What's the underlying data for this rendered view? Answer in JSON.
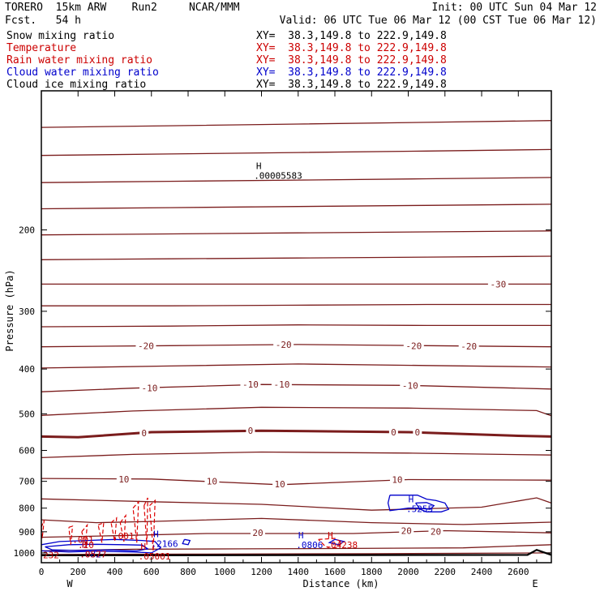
{
  "header": {
    "model": "TORERO  15km ARW    Run2     NCAR/MMM",
    "init": "Init: 00 UTC Sun 04 Mar 12",
    "fcst": "Fcst.   54 h",
    "valid": "Valid: 06 UTC Tue 06 Mar 12 (00 CST Tue 06 Mar 12)"
  },
  "fields": [
    {
      "name": "Snow mixing ratio",
      "xy": "XY=  38.3,149.8 to 222.9,149.8",
      "color": "#000000"
    },
    {
      "name": "Temperature",
      "xy": "XY=  38.3,149.8 to 222.9,149.8",
      "color": "#cc0000"
    },
    {
      "name": "Rain water mixing ratio",
      "xy": "XY=  38.3,149.8 to 222.9,149.8",
      "color": "#cc0000"
    },
    {
      "name": "Cloud water mixing ratio",
      "xy": "XY=  38.3,149.8 to 222.9,149.8",
      "color": "#0000cc"
    },
    {
      "name": "Cloud ice mixing ratio",
      "xy": "XY=  38.3,149.8 to 222.9,149.8",
      "color": "#000000"
    }
  ],
  "chart_data": {
    "type": "line",
    "xlabel": "Distance (km)",
    "ylabel": "Pressure (hPa)",
    "xlim": [
      0,
      2780
    ],
    "ylim": [
      1050,
      100
    ],
    "y_log": true,
    "xticks": [
      0,
      200,
      400,
      600,
      800,
      1000,
      1200,
      1400,
      1600,
      1800,
      2000,
      2200,
      2400,
      2600
    ],
    "yticks": [
      200,
      300,
      400,
      500,
      600,
      700,
      800,
      900,
      1000
    ],
    "west_label": "W",
    "east_label": "E",
    "isotherm_color": "#7a1c1c",
    "cloud_color": "#0000cc",
    "rain_color": "#dd0000",
    "isotherms": [
      {
        "x": [
          0,
          700,
          1400,
          2100,
          2780
        ],
        "p": [
          120,
          119,
          118,
          117,
          116
        ]
      },
      {
        "x": [
          0,
          700,
          1400,
          2100,
          2780
        ],
        "p": [
          138,
          137,
          136,
          135,
          134
        ]
      },
      {
        "x": [
          0,
          700,
          1400,
          2100,
          2780
        ],
        "p": [
          158,
          157,
          156,
          155,
          154
        ]
      },
      {
        "x": [
          0,
          700,
          1400,
          2100,
          2780
        ],
        "p": [
          180,
          179,
          178,
          177,
          176
        ]
      },
      {
        "x": [
          0,
          700,
          1400,
          2100,
          2780
        ],
        "p": [
          205,
          204,
          203,
          202,
          201
        ]
      },
      {
        "x": [
          0,
          700,
          1400,
          2100,
          2780
        ],
        "p": [
          232,
          231,
          230,
          229,
          228
        ]
      },
      {
        "x": [
          0,
          700,
          1400,
          2100,
          2780
        ],
        "p": [
          262,
          262,
          262,
          262,
          262
        ]
      },
      {
        "x": [
          0,
          700,
          1400,
          2100,
          2780
        ],
        "p": [
          292,
          292,
          291,
          290,
          290
        ]
      },
      {
        "x": [
          0,
          700,
          1400,
          2100,
          2780
        ],
        "p": [
          324,
          323,
          321,
          322,
          322
        ]
      },
      {
        "x": [
          0,
          700,
          1400,
          2100,
          2780
        ],
        "p": [
          358,
          356,
          354,
          356,
          358
        ]
      },
      {
        "x": [
          0,
          700,
          1400,
          2100,
          2780
        ],
        "p": [
          398,
          394,
          390,
          393,
          396
        ]
      },
      {
        "x": [
          0,
          500,
          1200,
          2000,
          2780
        ],
        "p": [
          448,
          440,
          432,
          434,
          442
        ]
      },
      {
        "x": [
          0,
          500,
          1200,
          2000,
          2700,
          2780
        ],
        "p": [
          504,
          493,
          484,
          486,
          492,
          505
        ]
      },
      {
        "x": [
          0,
          200,
          600,
          1200,
          2000,
          2600,
          2780
        ],
        "p": [
          560,
          562,
          548,
          544,
          548,
          558,
          560
        ]
      },
      {
        "x": [
          0,
          500,
          1200,
          2000,
          2780
        ],
        "p": [
          622,
          612,
          605,
          608,
          614
        ]
      },
      {
        "x": [
          0,
          600,
          1300,
          2000,
          2780
        ],
        "p": [
          690,
          692,
          712,
          694,
          696
        ]
      },
      {
        "x": [
          0,
          600,
          1200,
          1800,
          2400,
          2700,
          2780
        ],
        "p": [
          764,
          775,
          785,
          808,
          796,
          760,
          780
        ]
      },
      {
        "x": [
          0,
          300,
          600,
          1200,
          1800,
          2300,
          2780
        ],
        "p": [
          848,
          860,
          855,
          842,
          860,
          868,
          858
        ]
      },
      {
        "x": [
          0,
          400,
          900,
          1700,
          2200,
          2780
        ],
        "p": [
          925,
          918,
          908,
          908,
          895,
          905
        ]
      },
      {
        "x": [
          0,
          500,
          1100,
          1700,
          2300,
          2780
        ],
        "p": [
          990,
          982,
          980,
          978,
          975,
          960
        ]
      },
      {
        "x": [
          0,
          800,
          1800,
          2780
        ],
        "p": [
          1008,
          1006,
          1004,
          1000
        ]
      }
    ],
    "freezing_level": {
      "x": [
        0,
        200,
        600,
        1200,
        2000,
        2600,
        2780
      ],
      "p": [
        560,
        562,
        548,
        544,
        548,
        558,
        560
      ]
    },
    "terrain": {
      "x": [
        0,
        1700,
        2650,
        2700,
        2780
      ],
      "p": [
        1012,
        1011,
        1010,
        985,
        1010
      ]
    },
    "contour_labels": [
      {
        "text": "-30",
        "x": 2490,
        "p": 262
      },
      {
        "text": "-20",
        "x": 570,
        "p": 356
      },
      {
        "text": "-20",
        "x": 1320,
        "p": 354
      },
      {
        "text": "-20",
        "x": 2030,
        "p": 356
      },
      {
        "text": "-20",
        "x": 2330,
        "p": 357
      },
      {
        "text": "-10",
        "x": 590,
        "p": 440
      },
      {
        "text": "-10",
        "x": 1140,
        "p": 432
      },
      {
        "text": "-10",
        "x": 1310,
        "p": 432
      },
      {
        "text": "-10",
        "x": 2010,
        "p": 434
      },
      {
        "text": "0",
        "x": 560,
        "p": 550
      },
      {
        "text": "0",
        "x": 1140,
        "p": 544
      },
      {
        "text": "0",
        "x": 1920,
        "p": 548
      },
      {
        "text": "0",
        "x": 2050,
        "p": 548
      },
      {
        "text": "10",
        "x": 450,
        "p": 692
      },
      {
        "text": "10",
        "x": 930,
        "p": 700
      },
      {
        "text": "10",
        "x": 1300,
        "p": 710
      },
      {
        "text": "10",
        "x": 1940,
        "p": 694
      },
      {
        "text": "20",
        "x": 1180,
        "p": 905
      },
      {
        "text": "20",
        "x": 1990,
        "p": 896
      },
      {
        "text": "20",
        "x": 2150,
        "p": 898
      }
    ],
    "maxima": [
      {
        "label": "H",
        "value": ".00005583",
        "x": 1150,
        "p": 150,
        "color": "#000000"
      },
      {
        "label": "H",
        "value": ".5255",
        "x": 1980,
        "p": 790,
        "color": "#0000cc"
      },
      {
        "label": "H",
        "value": ".2166",
        "x": 590,
        "p": 940,
        "color": "#0000cc"
      },
      {
        "label": "H",
        "value": ".0806",
        "x": 1380,
        "p": 945,
        "color": "#0000cc"
      },
      {
        "label": "H",
        "value": ".04238",
        "x": 1540,
        "p": 945,
        "color": "#cc0000"
      },
      {
        "label": "",
        "value": ".001",
        "x": 160,
        "p": 920,
        "color": "#cc0000"
      },
      {
        "label": "",
        "value": ".001",
        "x": 380,
        "p": 905,
        "color": "#cc0000"
      },
      {
        "label": "",
        "value": ".20",
        "x": 190,
        "p": 945,
        "color": "#cc0000"
      },
      {
        "label": "H",
        "value": ".0827",
        "x": 200,
        "p": 990,
        "color": "#0000cc"
      },
      {
        "label": "H",
        "value": ".0577",
        "x": 200,
        "p": 990,
        "color": "#cc0000"
      },
      {
        "label": "H",
        "value": ".05001",
        "x": 520,
        "p": 1000,
        "color": "#cc0000"
      },
      {
        "label": "",
        "value": "232",
        "x": 0,
        "p": 995,
        "color": "#cc0000"
      }
    ],
    "cloud_water": [
      {
        "x": [
          0,
          100,
          250,
          400,
          550,
          620,
          650,
          600,
          500,
          300,
          150,
          0
        ],
        "p": [
          960,
          945,
          940,
          935,
          940,
          945,
          975,
          1000,
          995,
          992,
          995,
          990
        ]
      },
      {
        "x": [
          20,
          150,
          300,
          450,
          550,
          580,
          520,
          380,
          200,
          60,
          20
        ],
        "p": [
          970,
          960,
          958,
          960,
          962,
          980,
          990,
          985,
          988,
          985,
          970
        ]
      },
      {
        "x": [
          780,
          810,
          800,
          770,
          780
        ],
        "p": [
          935,
          940,
          960,
          955,
          935
        ]
      },
      {
        "x": [
          1900,
          2050,
          2100,
          2150,
          2200,
          2220,
          2180,
          2100,
          2050,
          2000,
          1900,
          1890,
          1900
        ],
        "p": [
          750,
          750,
          765,
          770,
          780,
          805,
          815,
          815,
          800,
          800,
          810,
          780,
          750
        ]
      },
      {
        "x": [
          2040,
          2100,
          2140,
          2120,
          2060,
          2040
        ],
        "p": [
          780,
          778,
          790,
          805,
          800,
          780
        ]
      },
      {
        "x": [
          1600,
          1650,
          1620,
          1570,
          1600
        ],
        "p": [
          935,
          945,
          960,
          950,
          935
        ]
      }
    ],
    "rain_water": [
      {
        "x": [
          0,
          15,
          5,
          0
        ],
        "p": [
          880,
          850,
          930,
          880
        ]
      },
      {
        "x": [
          150,
          170,
          160,
          150
        ],
        "p": [
          880,
          875,
          960,
          880
        ]
      },
      {
        "x": [
          220,
          250,
          240,
          220
        ],
        "p": [
          900,
          870,
          960,
          900
        ]
      },
      {
        "x": [
          310,
          340,
          330,
          310
        ],
        "p": [
          870,
          860,
          950,
          870
        ]
      },
      {
        "x": [
          380,
          410,
          400,
          380
        ],
        "p": [
          860,
          840,
          945,
          860
        ]
      },
      {
        "x": [
          430,
          460,
          450,
          430
        ],
        "p": [
          860,
          830,
          945,
          860
        ]
      },
      {
        "x": [
          500,
          530,
          520,
          500
        ],
        "p": [
          800,
          775,
          950,
          800
        ]
      },
      {
        "x": [
          560,
          580,
          575,
          560
        ],
        "p": [
          790,
          760,
          960,
          790
        ]
      },
      {
        "x": [
          590,
          620,
          610,
          590
        ],
        "p": [
          790,
          770,
          990,
          790
        ]
      },
      {
        "x": [
          1510,
          1600,
          1640,
          1610,
          1550,
          1510
        ],
        "p": [
          935,
          930,
          950,
          975,
          970,
          935
        ]
      }
    ]
  }
}
